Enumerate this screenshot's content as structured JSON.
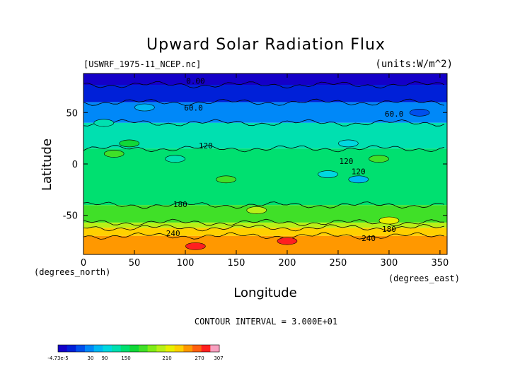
{
  "chart_data": {
    "type": "heatmap",
    "title": "Upward Solar Radiation Flux",
    "subtitle_left": "[USWRF_1975-11_NCEP.nc]",
    "subtitle_right": "(units:W/m^2)",
    "xlabel": "Longitude",
    "ylabel": "Latitude",
    "x_unit_label": "(degrees_east)",
    "y_unit_label": "(degrees_north)",
    "xlim": [
      0,
      357
    ],
    "ylim": [
      -88,
      88
    ],
    "x_ticks": [
      0,
      50,
      100,
      150,
      200,
      250,
      300,
      350
    ],
    "y_ticks": [
      50,
      0,
      -50
    ],
    "contour_interval_text": "CONTOUR INTERVAL = 3.000E+01",
    "contour_labels": [
      "0.00",
      "60.0",
      "60.0",
      "120",
      "120",
      "120",
      "180",
      "180",
      "240",
      "240"
    ],
    "colorbar": {
      "tick_labels": [
        "-4.73e-5",
        "30",
        "90",
        "150",
        "210",
        "270",
        "307"
      ],
      "range": [
        0,
        307
      ],
      "colors": [
        "#1400c8",
        "#0020d8",
        "#0050ec",
        "#0088f8",
        "#00b8f4",
        "#00d8e0",
        "#00e0b0",
        "#00e070",
        "#10d838",
        "#40e028",
        "#80ec18",
        "#b8f018",
        "#e8f000",
        "#ffd000",
        "#ff9800",
        "#ff6010",
        "#ff2020",
        "#f8a0c0"
      ]
    },
    "zonal_bands": [
      {
        "lat_from": 88,
        "lat_to": 77,
        "value": 0
      },
      {
        "lat_from": 77,
        "lat_to": 60,
        "value": 20
      },
      {
        "lat_from": 60,
        "lat_to": 40,
        "value": 70
      },
      {
        "lat_from": 40,
        "lat_to": 15,
        "value": 120
      },
      {
        "lat_from": 15,
        "lat_to": -40,
        "value": 140
      },
      {
        "lat_from": -40,
        "lat_to": -57,
        "value": 170
      },
      {
        "lat_from": -57,
        "lat_to": -62,
        "value": 200
      },
      {
        "lat_from": -62,
        "lat_to": -70,
        "value": 235
      },
      {
        "lat_from": -70,
        "lat_to": -88,
        "value": 270
      }
    ],
    "grid": false
  }
}
